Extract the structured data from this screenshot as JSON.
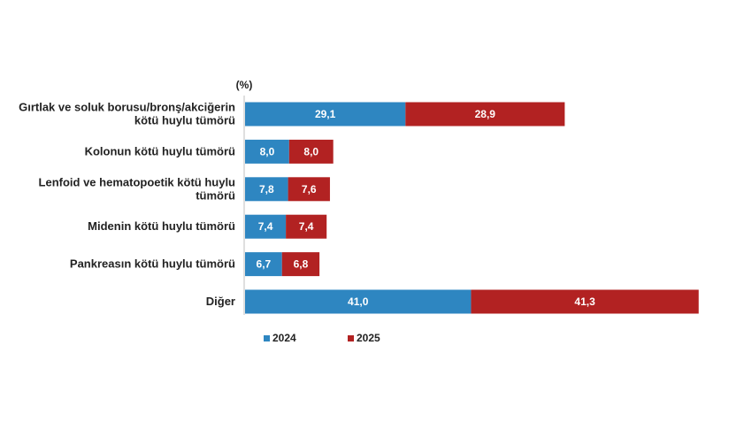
{
  "chart_data": {
    "type": "bar",
    "orientation": "horizontal",
    "stacked": true,
    "unit_label": "(%)",
    "categories": [
      "Gırtlak ve soluk borusu/bronş/akciğerin kötü huylu tümörü",
      "Kolonun kötü huylu tümörü",
      "Lenfoid ve hematopoetik kötü huylu tümörü",
      "Midenin kötü huylu tümörü",
      "Pankreasın kötü huylu tümörü",
      "Diğer"
    ],
    "category_lines": [
      [
        "Gırtlak ve soluk borusu/bronş/akciğerin",
        "kötü huylu tümörü"
      ],
      [
        "Kolonun kötü huylu tümörü"
      ],
      [
        "Lenfoid ve hematopoetik kötü huylu",
        "tümörü"
      ],
      [
        "Midenin kötü huylu tümörü"
      ],
      [
        "Pankreasın kötü huylu tümörü"
      ],
      [
        "Diğer"
      ]
    ],
    "series": [
      {
        "name": "2024",
        "color": "#2e86c1",
        "values": [
          29.1,
          8.0,
          7.8,
          7.4,
          6.7,
          41.0
        ],
        "labels": [
          "29,1",
          "8,0",
          "7,8",
          "7,4",
          "6,7",
          "41,0"
        ]
      },
      {
        "name": "2025",
        "color": "#b22222",
        "values": [
          28.9,
          8.0,
          7.6,
          7.4,
          6.8,
          41.3
        ],
        "labels": [
          "28,9",
          "8,0",
          "7,6",
          "7,4",
          "6,8",
          "41,3"
        ]
      }
    ],
    "legend_position": "bottom",
    "grid": false
  }
}
